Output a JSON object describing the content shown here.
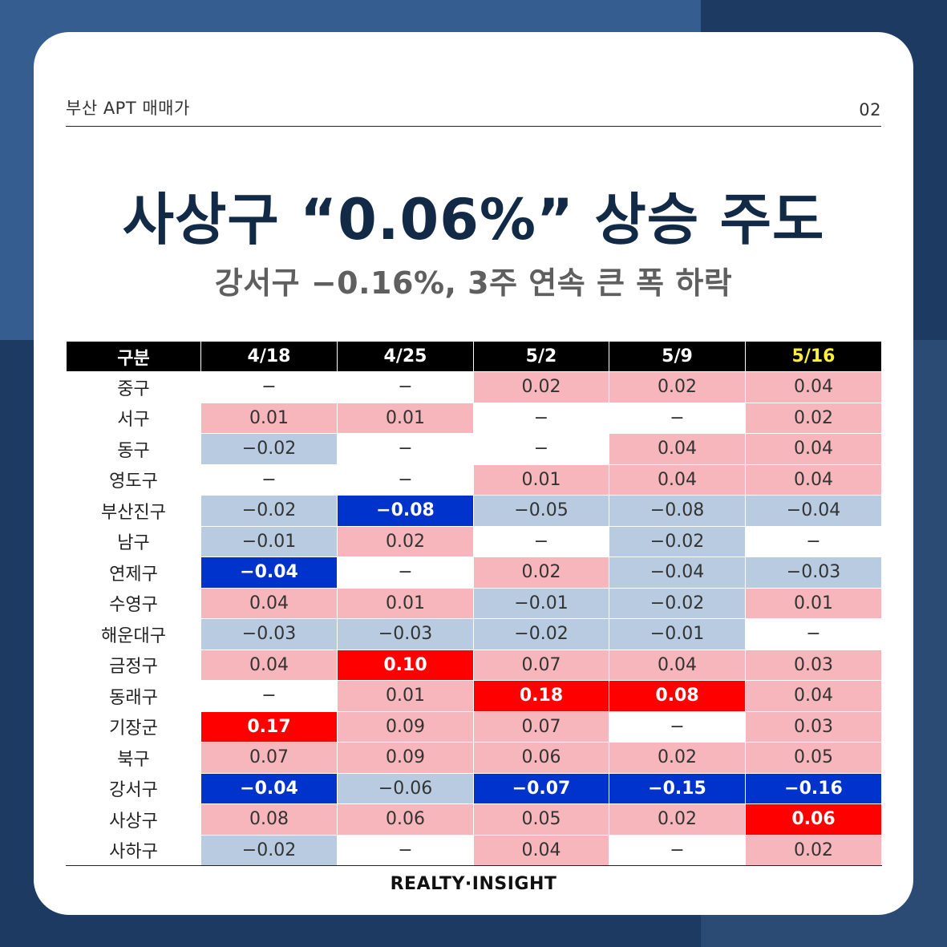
{
  "header": {
    "label": "부산 APT 매매가",
    "page": "02"
  },
  "title": "사상구 “0.06%” 상승 주도",
  "subtitle": "강서구 −0.16%, 3주 연속 큰 폭 하락",
  "table": {
    "columns": [
      "구분",
      "4/18",
      "4/25",
      "5/2",
      "5/9",
      "5/16"
    ],
    "highlight_column_color": "#ffef3a",
    "colors": {
      "none": "#ffffff",
      "light_pink": "#f7b6bb",
      "strong_red": "#ff0000",
      "light_blue": "#b8cbe0",
      "strong_blue": "#0033cc"
    },
    "rows": [
      {
        "name": "중구",
        "values": [
          "−",
          "−",
          "0.02",
          "0.02",
          "0.04"
        ],
        "styles": [
          "n",
          "n",
          "lp",
          "lp",
          "lp"
        ]
      },
      {
        "name": "서구",
        "values": [
          "0.01",
          "0.01",
          "−",
          "−",
          "0.02"
        ],
        "styles": [
          "lp",
          "lp",
          "n",
          "n",
          "lp"
        ]
      },
      {
        "name": "동구",
        "values": [
          "−0.02",
          "−",
          "−",
          "0.04",
          "0.04"
        ],
        "styles": [
          "lb",
          "n",
          "n",
          "lp",
          "lp"
        ]
      },
      {
        "name": "영도구",
        "values": [
          "−",
          "−",
          "0.01",
          "0.04",
          "0.04"
        ],
        "styles": [
          "n",
          "n",
          "lp",
          "lp",
          "lp"
        ]
      },
      {
        "name": "부산진구",
        "values": [
          "−0.02",
          "−0.08",
          "−0.05",
          "−0.08",
          "−0.04"
        ],
        "styles": [
          "lb",
          "sb",
          "lb",
          "lb",
          "lb"
        ]
      },
      {
        "name": "남구",
        "values": [
          "−0.01",
          "0.02",
          "−",
          "−0.02",
          "−"
        ],
        "styles": [
          "lb",
          "lp",
          "n",
          "lb",
          "n"
        ]
      },
      {
        "name": "연제구",
        "values": [
          "−0.04",
          "−",
          "0.02",
          "−0.04",
          "−0.03"
        ],
        "styles": [
          "sb",
          "n",
          "lp",
          "lb",
          "lb"
        ]
      },
      {
        "name": "수영구",
        "values": [
          "0.04",
          "0.01",
          "−0.01",
          "−0.02",
          "0.01"
        ],
        "styles": [
          "lp",
          "lp",
          "lb",
          "lb",
          "lp"
        ]
      },
      {
        "name": "해운대구",
        "values": [
          "−0.03",
          "−0.03",
          "−0.02",
          "−0.01",
          "−"
        ],
        "styles": [
          "lb",
          "lb",
          "lb",
          "lb",
          "n"
        ]
      },
      {
        "name": "금정구",
        "values": [
          "0.04",
          "0.10",
          "0.07",
          "0.04",
          "0.03"
        ],
        "styles": [
          "lp",
          "sp",
          "lp",
          "lp",
          "lp"
        ]
      },
      {
        "name": "동래구",
        "values": [
          "−",
          "0.01",
          "0.18",
          "0.08",
          "0.04"
        ],
        "styles": [
          "n",
          "lp",
          "sp",
          "sp",
          "lp"
        ]
      },
      {
        "name": "기장군",
        "values": [
          "0.17",
          "0.09",
          "0.07",
          "−",
          "0.03"
        ],
        "styles": [
          "sp",
          "lp",
          "lp",
          "n",
          "lp"
        ]
      },
      {
        "name": "북구",
        "values": [
          "0.07",
          "0.09",
          "0.06",
          "0.02",
          "0.05"
        ],
        "styles": [
          "lp",
          "lp",
          "lp",
          "lp",
          "lp"
        ]
      },
      {
        "name": "강서구",
        "values": [
          "−0.04",
          "−0.06",
          "−0.07",
          "−0.15",
          "−0.16"
        ],
        "styles": [
          "sb",
          "lb",
          "sb",
          "sb",
          "sb"
        ]
      },
      {
        "name": "사상구",
        "values": [
          "0.08",
          "0.06",
          "0.05",
          "0.02",
          "0.06"
        ],
        "styles": [
          "lp",
          "lp",
          "lp",
          "lp",
          "sp"
        ]
      },
      {
        "name": "사하구",
        "values": [
          "−0.02",
          "−",
          "0.04",
          "−",
          "0.02"
        ],
        "styles": [
          "lb",
          "n",
          "lp",
          "n",
          "lp"
        ]
      }
    ]
  },
  "footer": "REALTY·INSIGHT"
}
